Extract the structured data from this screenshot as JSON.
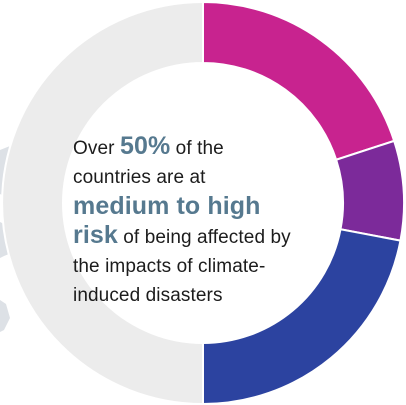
{
  "chart_data": {
    "type": "pie",
    "donut": true,
    "categories": [
      "",
      "",
      "",
      ""
    ],
    "values": [
      20,
      8,
      22,
      50
    ],
    "colors": [
      "#c8238f",
      "#7c2a9a",
      "#2c43a0",
      "#ececec"
    ],
    "title": "",
    "legend": "none"
  },
  "callout": {
    "line1_pre": "Over ",
    "line1_pct": "50%",
    "line1_post": " of the",
    "line2": "countries are at",
    "line3": "medium to high",
    "line4_hl": "risk",
    "line4_post": " of being affected by",
    "line5": "the  impacts of  climate-",
    "line6": "induced disasters"
  }
}
